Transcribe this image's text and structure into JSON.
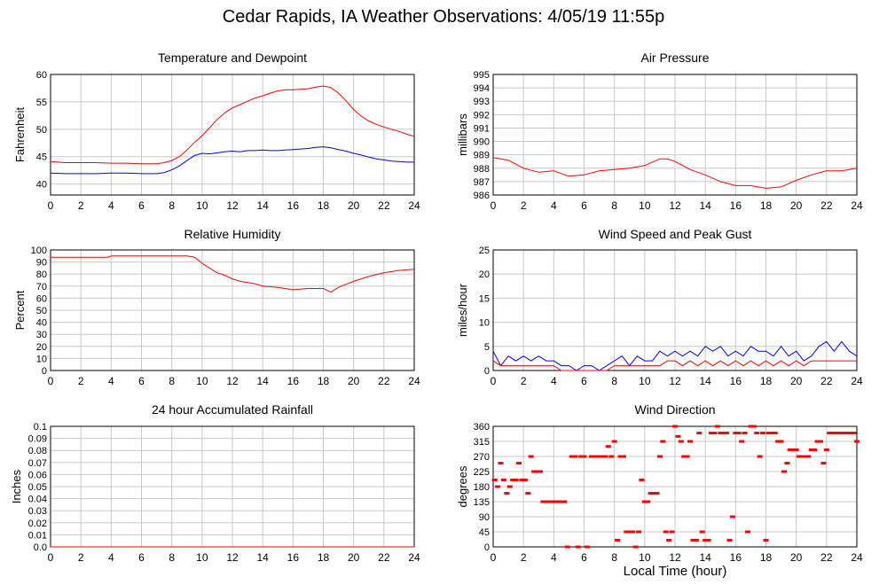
{
  "page": {
    "title": "Cedar Rapids, IA Weather Observations: 4/05/19 11:55p",
    "xlabel_bottom": "Local Time (hour)"
  },
  "colors": {
    "series_red": "#ff0000",
    "series_blue": "#0000ff",
    "grid": "#c8c8c8",
    "frame": "#000000"
  },
  "chart_data": [
    {
      "id": "temp",
      "type": "line",
      "title": "Temperature and Dewpoint",
      "xlabel": "",
      "ylabel": "Fahrenheit",
      "xlim": [
        0,
        24
      ],
      "ylim": [
        38,
        60
      ],
      "xticks": [
        0,
        2,
        4,
        6,
        8,
        10,
        12,
        14,
        16,
        18,
        20,
        22,
        24
      ],
      "yticks": [
        40,
        45,
        50,
        55,
        60
      ],
      "grid": true,
      "series": [
        {
          "color": "red",
          "x": [
            0,
            1,
            2,
            3,
            4,
            5,
            6,
            7,
            7.5,
            8,
            8.5,
            9,
            9.5,
            10,
            10.5,
            11,
            11.5,
            12,
            12.5,
            13,
            13.5,
            14,
            14.5,
            15,
            15.5,
            16,
            16.5,
            17,
            17.5,
            18,
            18.5,
            19,
            19.5,
            20,
            20.5,
            21,
            21.5,
            22,
            22.5,
            23,
            23.5,
            24
          ],
          "y": [
            44.1,
            43.9,
            43.9,
            43.9,
            43.8,
            43.8,
            43.7,
            43.7,
            43.9,
            44.3,
            45.0,
            46.2,
            47.6,
            48.8,
            50.3,
            51.8,
            53.0,
            53.9,
            54.5,
            55.1,
            55.7,
            56.1,
            56.6,
            57.0,
            57.2,
            57.2,
            57.3,
            57.4,
            57.7,
            57.9,
            57.6,
            56.6,
            55.2,
            53.6,
            52.4,
            51.5,
            50.9,
            50.4,
            50.0,
            49.6,
            49.1,
            48.7
          ]
        },
        {
          "color": "blue",
          "x": [
            0,
            1,
            2,
            3,
            4,
            5,
            6,
            7,
            7.5,
            8,
            8.5,
            9,
            9.5,
            10,
            10.5,
            11,
            11.5,
            12,
            12.5,
            13,
            13.5,
            14,
            14.5,
            15,
            15.5,
            16,
            16.5,
            17,
            17.5,
            18,
            18.5,
            19,
            19.5,
            20,
            20.5,
            21,
            21.5,
            22,
            22.5,
            23,
            23.5,
            24
          ],
          "y": [
            42.0,
            41.9,
            41.9,
            41.9,
            42.0,
            42.0,
            41.9,
            41.9,
            42.1,
            42.6,
            43.3,
            44.3,
            45.2,
            45.6,
            45.5,
            45.7,
            45.9,
            46.0,
            45.9,
            46.1,
            46.1,
            46.2,
            46.1,
            46.1,
            46.2,
            46.3,
            46.4,
            46.5,
            46.7,
            46.8,
            46.6,
            46.3,
            46.0,
            45.6,
            45.3,
            44.9,
            44.6,
            44.4,
            44.2,
            44.1,
            44.0,
            44.0
          ]
        }
      ]
    },
    {
      "id": "pressure",
      "type": "line",
      "title": "Air Pressure",
      "xlabel": "",
      "ylabel": "millibars",
      "xlim": [
        0,
        24
      ],
      "ylim": [
        986,
        995
      ],
      "xticks": [
        0,
        2,
        4,
        6,
        8,
        10,
        12,
        14,
        16,
        18,
        20,
        22,
        24
      ],
      "yticks": [
        986,
        987,
        988,
        989,
        990,
        991,
        992,
        993,
        994,
        995
      ],
      "grid": true,
      "series": [
        {
          "color": "red",
          "x": [
            0,
            1,
            2,
            3,
            4,
            5,
            6,
            7,
            8,
            9,
            10,
            11,
            11.5,
            12,
            13,
            14,
            15,
            16,
            17,
            18,
            19,
            20,
            21,
            22,
            23,
            24
          ],
          "y": [
            988.8,
            988.6,
            988.0,
            987.7,
            987.8,
            987.4,
            987.5,
            987.8,
            987.9,
            988.0,
            988.2,
            988.7,
            988.7,
            988.5,
            987.9,
            987.5,
            987.0,
            986.7,
            986.7,
            986.5,
            986.6,
            987.1,
            987.5,
            987.8,
            987.8,
            988.0
          ]
        }
      ]
    },
    {
      "id": "humidity",
      "type": "line",
      "title": "Relative Humidity",
      "xlabel": "",
      "ylabel": "Percent",
      "xlim": [
        0,
        24
      ],
      "ylim": [
        0,
        100
      ],
      "xticks": [
        0,
        2,
        4,
        6,
        8,
        10,
        12,
        14,
        16,
        18,
        20,
        22,
        24
      ],
      "yticks": [
        0,
        10,
        20,
        30,
        40,
        50,
        60,
        70,
        80,
        90,
        100
      ],
      "grid": true,
      "series": [
        {
          "color": "red",
          "x": [
            0,
            1,
            2,
            3,
            3.8,
            4,
            5,
            6,
            7,
            8,
            9,
            9.5,
            10,
            10.5,
            11,
            11.5,
            12,
            12.5,
            13,
            13.5,
            14,
            15,
            16,
            17,
            18,
            18.5,
            19,
            20,
            21,
            22,
            23,
            24
          ],
          "y": [
            94,
            94,
            94,
            94,
            94,
            95,
            95,
            95,
            95,
            95,
            95,
            94,
            89,
            85,
            81,
            79,
            76,
            74,
            73,
            72,
            70,
            69,
            67,
            68,
            68,
            65,
            69,
            74,
            78,
            81,
            83,
            84
          ]
        }
      ]
    },
    {
      "id": "wind",
      "type": "line",
      "title": "Wind Speed and Peak Gust",
      "xlabel": "",
      "ylabel": "miles/hour",
      "xlim": [
        0,
        24
      ],
      "ylim": [
        0,
        25
      ],
      "xticks": [
        0,
        2,
        4,
        6,
        8,
        10,
        12,
        14,
        16,
        18,
        20,
        22,
        24
      ],
      "yticks": [
        0,
        5,
        10,
        15,
        20,
        25
      ],
      "grid": true,
      "series": [
        {
          "color": "blue",
          "x": [
            0,
            0.5,
            1,
            1.5,
            2,
            2.5,
            3,
            3.5,
            4,
            4.5,
            5,
            5.5,
            6,
            6.5,
            7,
            7.5,
            8,
            8.5,
            9,
            9.5,
            10,
            10.5,
            11,
            11.5,
            12,
            12.5,
            13,
            13.5,
            14,
            14.5,
            15,
            15.5,
            16,
            16.5,
            17,
            17.5,
            18,
            18.5,
            19,
            19.5,
            20,
            20.5,
            21,
            21.5,
            22,
            22.5,
            23,
            23.5,
            24
          ],
          "y": [
            4,
            1,
            3,
            2,
            3,
            2,
            3,
            2,
            2,
            1,
            1,
            0,
            1,
            1,
            0,
            1,
            2,
            3,
            1,
            3,
            2,
            2,
            4,
            3,
            4,
            3,
            4,
            3,
            5,
            4,
            5,
            3,
            4,
            3,
            5,
            4,
            4,
            3,
            5,
            3,
            4,
            2,
            3,
            5,
            6,
            4,
            6,
            4,
            3
          ]
        },
        {
          "color": "red",
          "x": [
            0,
            0.5,
            1,
            1.5,
            2,
            2.5,
            3,
            3.5,
            4,
            4.5,
            5,
            5.5,
            6,
            6.5,
            7,
            7.5,
            8,
            8.5,
            9,
            9.5,
            10,
            10.5,
            11,
            11.5,
            12,
            12.5,
            13,
            13.5,
            14,
            14.5,
            15,
            15.5,
            16,
            16.5,
            17,
            17.5,
            18,
            18.5,
            19,
            19.5,
            20,
            20.5,
            21,
            21.5,
            22,
            22.5,
            23,
            23.5,
            24
          ],
          "y": [
            2,
            1,
            1,
            1,
            1,
            1,
            1,
            1,
            1,
            0,
            0,
            0,
            0,
            0,
            0,
            0,
            1,
            1,
            1,
            1,
            1,
            1,
            1,
            2,
            2,
            1,
            2,
            1,
            2,
            1,
            2,
            1,
            2,
            1,
            2,
            1,
            2,
            1,
            2,
            1,
            2,
            1,
            2,
            2,
            2,
            2,
            2,
            2,
            2
          ]
        }
      ]
    },
    {
      "id": "rain",
      "type": "line",
      "title": "24 hour Accumulated Rainfall",
      "xlabel": "",
      "ylabel": "Inches",
      "xlim": [
        0,
        24
      ],
      "ylim": [
        0,
        0.1
      ],
      "xticks": [
        0,
        2,
        4,
        6,
        8,
        10,
        12,
        14,
        16,
        18,
        20,
        22,
        24
      ],
      "yticks": [
        0.0,
        0.01,
        0.02,
        0.03,
        0.04,
        0.05,
        0.06,
        0.07,
        0.08,
        0.09,
        0.1
      ],
      "ytick_labels": [
        "0.0",
        "0.01",
        "0.02",
        "0.03",
        "0.04",
        "0.05",
        "0.06",
        "0.07",
        "0.08",
        "0.09",
        "0.1"
      ],
      "grid": true,
      "series": [
        {
          "color": "red",
          "x": [
            0,
            24
          ],
          "y": [
            0,
            0
          ]
        }
      ]
    },
    {
      "id": "winddir",
      "type": "scatter",
      "title": "Wind Direction",
      "xlabel": "Local Time (hour)",
      "ylabel": "degrees",
      "xlim": [
        0,
        24
      ],
      "ylim": [
        0,
        360
      ],
      "xticks": [
        0,
        2,
        4,
        6,
        8,
        10,
        12,
        14,
        16,
        18,
        20,
        22,
        24
      ],
      "yticks": [
        0,
        45,
        90,
        135,
        180,
        225,
        270,
        315,
        360
      ],
      "grid": true,
      "series": [
        {
          "color": "red",
          "x": [
            0.1,
            0.3,
            0.5,
            0.7,
            0.9,
            1.1,
            1.3,
            1.5,
            1.7,
            1.9,
            2.1,
            2.3,
            2.5,
            2.7,
            2.9,
            3.1,
            3.3,
            3.5,
            3.7,
            3.9,
            4.1,
            4.3,
            4.5,
            4.7,
            4.9,
            5.2,
            5.4,
            5.6,
            5.8,
            6.0,
            6.2,
            6.5,
            6.8,
            7.0,
            7.2,
            7.4,
            7.6,
            7.8,
            8.0,
            8.2,
            8.4,
            8.6,
            8.8,
            9.0,
            9.2,
            9.4,
            9.6,
            9.8,
            10.0,
            10.2,
            10.4,
            10.6,
            10.8,
            11.0,
            11.2,
            11.4,
            11.6,
            11.8,
            12.0,
            12.2,
            12.4,
            12.6,
            12.8,
            13.0,
            13.2,
            13.4,
            13.6,
            13.8,
            14.0,
            14.2,
            14.4,
            14.6,
            14.8,
            15.0,
            15.2,
            15.4,
            15.6,
            15.8,
            16.0,
            16.2,
            16.4,
            16.6,
            16.8,
            17.0,
            17.2,
            17.4,
            17.6,
            17.8,
            18.0,
            18.2,
            18.4,
            18.6,
            18.8,
            19.0,
            19.2,
            19.4,
            19.6,
            19.8,
            20.0,
            20.2,
            20.4,
            20.6,
            20.8,
            21.0,
            21.2,
            21.4,
            21.6,
            21.8,
            22.0,
            22.2,
            22.4,
            22.6,
            22.8,
            23.0,
            23.2,
            23.4,
            23.6,
            23.8,
            24.0
          ],
          "y": [
            200,
            180,
            250,
            200,
            160,
            180,
            200,
            200,
            250,
            200,
            200,
            160,
            270,
            225,
            225,
            225,
            135,
            135,
            135,
            135,
            135,
            135,
            135,
            135,
            0,
            270,
            270,
            0,
            270,
            270,
            0,
            270,
            270,
            270,
            270,
            270,
            300,
            270,
            315,
            20,
            270,
            270,
            45,
            45,
            45,
            0,
            45,
            200,
            135,
            135,
            160,
            160,
            160,
            270,
            315,
            45,
            20,
            45,
            360,
            330,
            315,
            270,
            270,
            315,
            20,
            20,
            340,
            45,
            20,
            20,
            340,
            340,
            360,
            340,
            340,
            340,
            20,
            90,
            340,
            340,
            315,
            340,
            45,
            360,
            360,
            340,
            270,
            340,
            20,
            340,
            340,
            340,
            315,
            315,
            225,
            250,
            290,
            290,
            290,
            270,
            270,
            270,
            270,
            290,
            290,
            315,
            315,
            250,
            290,
            340,
            340,
            340,
            340,
            340,
            340,
            340,
            340,
            340,
            315
          ]
        }
      ]
    }
  ]
}
